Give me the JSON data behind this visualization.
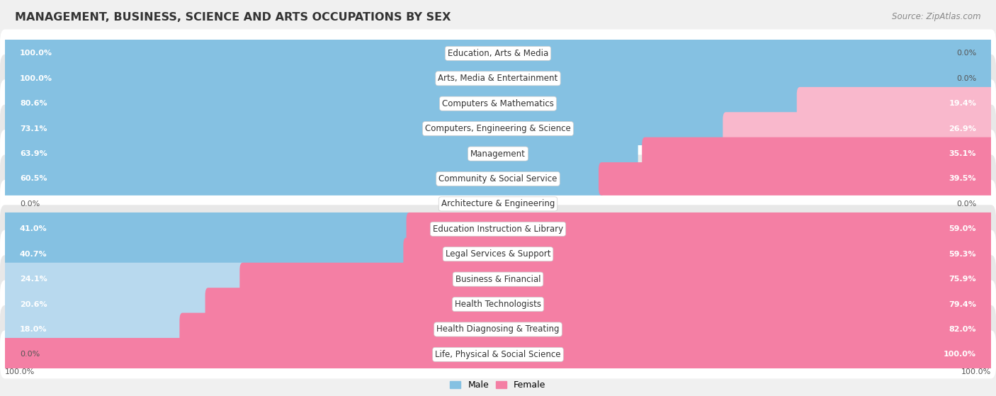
{
  "title": "MANAGEMENT, BUSINESS, SCIENCE AND ARTS OCCUPATIONS BY SEX",
  "source": "Source: ZipAtlas.com",
  "categories": [
    "Education, Arts & Media",
    "Arts, Media & Entertainment",
    "Computers & Mathematics",
    "Computers, Engineering & Science",
    "Management",
    "Community & Social Service",
    "Architecture & Engineering",
    "Education Instruction & Library",
    "Legal Services & Support",
    "Business & Financial",
    "Health Technologists",
    "Health Diagnosing & Treating",
    "Life, Physical & Social Science"
  ],
  "male": [
    100.0,
    100.0,
    80.6,
    73.1,
    63.9,
    60.5,
    0.0,
    41.0,
    40.7,
    24.1,
    20.6,
    18.0,
    0.0
  ],
  "female": [
    0.0,
    0.0,
    19.4,
    26.9,
    35.1,
    39.5,
    0.0,
    59.0,
    59.3,
    75.9,
    79.4,
    82.0,
    100.0
  ],
  "male_color": "#85C1E2",
  "female_color": "#F47FA4",
  "male_color_light": "#B8D9EE",
  "female_color_light": "#F9B8CC",
  "background_color": "#f0f0f0",
  "row_bg_even": "#ffffff",
  "row_bg_odd": "#e8e8e8",
  "title_fontsize": 11.5,
  "label_fontsize": 8.5,
  "value_fontsize": 8.0,
  "legend_fontsize": 9,
  "source_fontsize": 8.5
}
